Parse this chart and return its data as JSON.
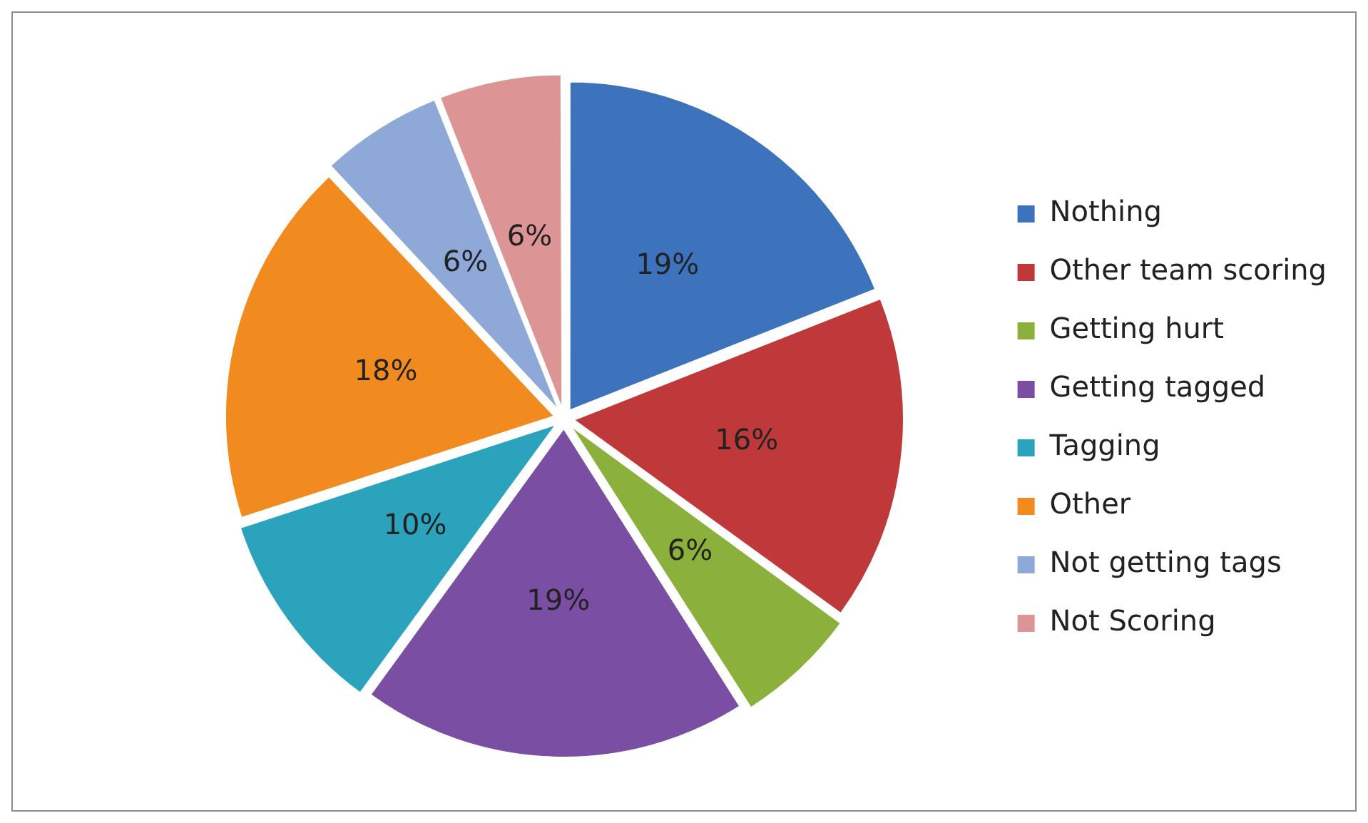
{
  "chart_data": {
    "type": "pie",
    "categories": [
      "Nothing",
      "Other team scoring",
      "Getting hurt",
      "Getting tagged",
      "Tagging",
      "Other",
      "Not getting tags",
      "Not Scoring"
    ],
    "values": [
      19,
      16,
      6,
      19,
      10,
      18,
      6,
      6
    ],
    "colors": [
      "#3d72bd",
      "#c0393a",
      "#8bb03c",
      "#7a4ea2",
      "#2ba3bd",
      "#f28b1f",
      "#8ea9d8",
      "#dc9594"
    ],
    "value_labels": [
      "19%",
      "16%",
      "6%",
      "19%",
      "10%",
      "18%",
      "6%",
      "6%"
    ],
    "legend": "right"
  }
}
